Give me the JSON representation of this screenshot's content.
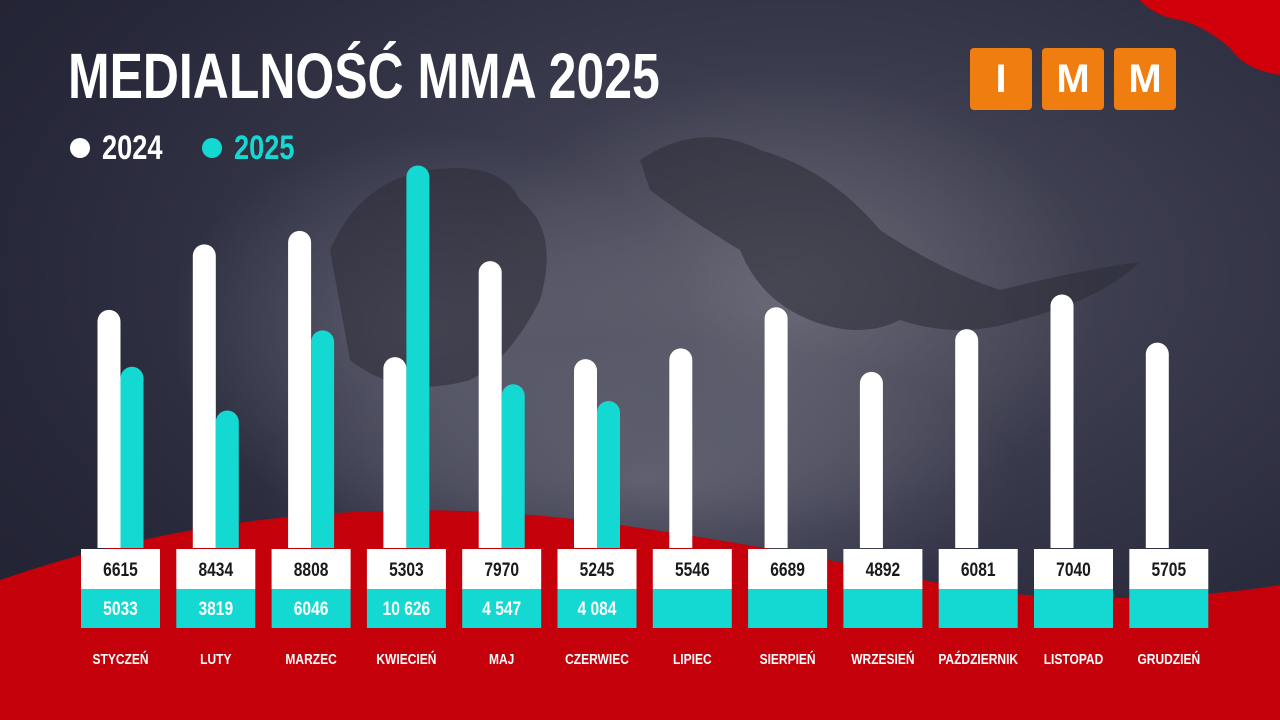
{
  "title": "MEDIALNOŚĆ MMA 2025",
  "logo": {
    "letters": [
      "I",
      "M",
      "M"
    ],
    "color": "#ef7d10"
  },
  "colors": {
    "series_2024": "#ffffff",
    "series_2025": "#14d8d2",
    "background": "#2a2b3c",
    "accent_red": "#d0000a"
  },
  "chart_data": {
    "type": "bar",
    "title": "MEDIALNOŚĆ MMA 2025",
    "xlabel": "",
    "ylabel": "",
    "categories": [
      "STYCZEŃ",
      "LUTY",
      "MARZEC",
      "KWIECIEŃ",
      "MAJ",
      "CZERWIEC",
      "LIPIEC",
      "SIERPIEŃ",
      "WRZESIEŃ",
      "PAŹDZIERNIK",
      "LISTOPAD",
      "GRUDZIEŃ"
    ],
    "series": [
      {
        "name": "2024",
        "color": "#ffffff",
        "values": [
          6615,
          8434,
          8808,
          5303,
          7970,
          5245,
          5546,
          6689,
          4892,
          6081,
          7040,
          5705
        ],
        "labels": [
          "6615",
          "8434",
          "8808",
          "5303",
          "7970",
          "5245",
          "5546",
          "6689",
          "4892",
          "6081",
          "7040",
          "5705"
        ]
      },
      {
        "name": "2025",
        "color": "#14d8d2",
        "values": [
          5033,
          3819,
          6046,
          10626,
          4547,
          4084,
          null,
          null,
          null,
          null,
          null,
          null
        ],
        "labels": [
          "5033",
          "3819",
          "6046",
          "10 626",
          "4 547",
          "4 084",
          "",
          "",
          "",
          "",
          "",
          ""
        ]
      }
    ],
    "ylim": [
      0,
      11000
    ],
    "grid": false,
    "legend": "top-left"
  }
}
